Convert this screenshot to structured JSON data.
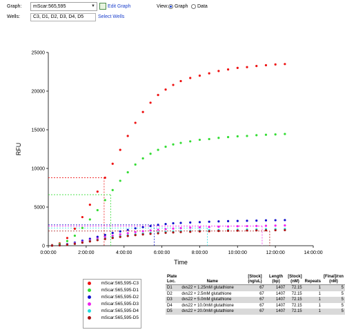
{
  "controls": {
    "graph_label": "Graph:",
    "graph_value": "mScar:565,595",
    "edit_graph": "Edit Graph",
    "wells_label": "Wells:",
    "wells_value": "C3, D1, D2, D3, D4, D5",
    "select_wells": "Select Wells",
    "view_label": "View:",
    "view_graph": "Graph",
    "view_data": "Data",
    "view_selected": "Graph"
  },
  "chart_data": {
    "type": "scatter",
    "xlabel": "Time",
    "ylabel": "RFU",
    "xlim": [
      0,
      14
    ],
    "ylim": [
      0,
      25000
    ],
    "x_ticks": [
      "0:00:00",
      "2:00:00",
      "4:00:00",
      "6:00:00",
      "8:00:00",
      "10:00:00",
      "12:00:00",
      "14:00:00"
    ],
    "y_ticks": [
      "0",
      "5000",
      "10000",
      "15000",
      "20000",
      "25000"
    ],
    "series": [
      {
        "name": "mScar:565,595-C3",
        "color": "#ee1111",
        "points": [
          [
            0.2,
            80
          ],
          [
            0.6,
            300
          ],
          [
            1.0,
            1000
          ],
          [
            1.4,
            2200
          ],
          [
            1.8,
            3700
          ],
          [
            2.2,
            5300
          ],
          [
            2.6,
            7000
          ],
          [
            3.0,
            8800
          ],
          [
            3.4,
            10600
          ],
          [
            3.8,
            12400
          ],
          [
            4.2,
            14200
          ],
          [
            4.6,
            15900
          ],
          [
            5.0,
            17300
          ],
          [
            5.4,
            18500
          ],
          [
            5.8,
            19500
          ],
          [
            6.2,
            20200
          ],
          [
            6.6,
            20800
          ],
          [
            7.0,
            21300
          ],
          [
            7.5,
            21700
          ],
          [
            8.0,
            22000
          ],
          [
            8.5,
            22300
          ],
          [
            9.0,
            22600
          ],
          [
            9.5,
            22800
          ],
          [
            10.0,
            23000
          ],
          [
            10.5,
            23100
          ],
          [
            11.0,
            23250
          ],
          [
            11.5,
            23350
          ],
          [
            12.0,
            23450
          ],
          [
            12.5,
            23500
          ]
        ]
      },
      {
        "name": "mScar:565,595-D1",
        "color": "#33dd33",
        "points": [
          [
            0.2,
            50
          ],
          [
            0.6,
            200
          ],
          [
            1.0,
            600
          ],
          [
            1.4,
            1300
          ],
          [
            1.8,
            2300
          ],
          [
            2.2,
            3400
          ],
          [
            2.6,
            4600
          ],
          [
            3.0,
            5900
          ],
          [
            3.4,
            7200
          ],
          [
            3.8,
            8400
          ],
          [
            4.2,
            9500
          ],
          [
            4.6,
            10500
          ],
          [
            5.0,
            11300
          ],
          [
            5.4,
            11900
          ],
          [
            5.8,
            12400
          ],
          [
            6.2,
            12800
          ],
          [
            6.6,
            13100
          ],
          [
            7.0,
            13300
          ],
          [
            7.5,
            13500
          ],
          [
            8.0,
            13700
          ],
          [
            8.5,
            13800
          ],
          [
            9.0,
            13950
          ],
          [
            9.5,
            14050
          ],
          [
            10.0,
            14150
          ],
          [
            10.5,
            14200
          ],
          [
            11.0,
            14300
          ],
          [
            11.5,
            14350
          ],
          [
            12.0,
            14400
          ],
          [
            12.5,
            14450
          ]
        ]
      },
      {
        "name": "mScar:565,595-D2",
        "color": "#1111cc",
        "points": [
          [
            0.2,
            20
          ],
          [
            0.6,
            80
          ],
          [
            1.0,
            200
          ],
          [
            1.4,
            400
          ],
          [
            1.8,
            650
          ],
          [
            2.2,
            900
          ],
          [
            2.6,
            1150
          ],
          [
            3.0,
            1400
          ],
          [
            3.4,
            1650
          ],
          [
            3.8,
            1850
          ],
          [
            4.2,
            2050
          ],
          [
            4.6,
            2250
          ],
          [
            5.0,
            2400
          ],
          [
            5.4,
            2550
          ],
          [
            5.8,
            2700
          ],
          [
            6.2,
            2800
          ],
          [
            6.6,
            2900
          ],
          [
            7.0,
            2950
          ],
          [
            7.5,
            3000
          ],
          [
            8.0,
            3050
          ],
          [
            8.5,
            3100
          ],
          [
            9.0,
            3150
          ],
          [
            9.5,
            3180
          ],
          [
            10.0,
            3200
          ],
          [
            10.5,
            3230
          ],
          [
            11.0,
            3250
          ],
          [
            11.5,
            3280
          ],
          [
            12.0,
            3300
          ],
          [
            12.5,
            3320
          ]
        ]
      },
      {
        "name": "mScar:565,595-D3",
        "color": "#ee22ee",
        "points": [
          [
            0.2,
            15
          ],
          [
            0.6,
            60
          ],
          [
            1.0,
            150
          ],
          [
            1.4,
            320
          ],
          [
            1.8,
            520
          ],
          [
            2.2,
            720
          ],
          [
            2.6,
            920
          ],
          [
            3.0,
            1120
          ],
          [
            3.4,
            1300
          ],
          [
            3.8,
            1470
          ],
          [
            4.2,
            1620
          ],
          [
            4.6,
            1760
          ],
          [
            5.0,
            1880
          ],
          [
            5.4,
            1980
          ],
          [
            5.8,
            2070
          ],
          [
            6.2,
            2150
          ],
          [
            6.6,
            2220
          ],
          [
            7.0,
            2280
          ],
          [
            7.5,
            2330
          ],
          [
            8.0,
            2380
          ],
          [
            8.5,
            2420
          ],
          [
            9.0,
            2460
          ],
          [
            9.5,
            2490
          ],
          [
            10.0,
            2520
          ],
          [
            10.5,
            2540
          ],
          [
            11.0,
            2560
          ],
          [
            11.5,
            2580
          ],
          [
            12.0,
            2600
          ],
          [
            12.5,
            2620
          ]
        ]
      },
      {
        "name": "mScar:565,595-D4",
        "color": "#22dddd",
        "points": [
          [
            0.2,
            10
          ],
          [
            0.6,
            50
          ],
          [
            1.0,
            130
          ],
          [
            1.4,
            260
          ],
          [
            1.8,
            430
          ],
          [
            2.2,
            600
          ],
          [
            2.6,
            770
          ],
          [
            3.0,
            930
          ],
          [
            3.4,
            1080
          ],
          [
            3.8,
            1220
          ],
          [
            4.2,
            1350
          ],
          [
            4.6,
            1460
          ],
          [
            5.0,
            1560
          ],
          [
            5.4,
            1650
          ],
          [
            5.8,
            1720
          ],
          [
            6.2,
            1790
          ],
          [
            6.6,
            1840
          ],
          [
            7.0,
            1890
          ],
          [
            7.5,
            1930
          ],
          [
            8.0,
            1970
          ],
          [
            8.5,
            2000
          ],
          [
            9.0,
            2030
          ],
          [
            9.5,
            2060
          ],
          [
            10.0,
            2080
          ],
          [
            10.5,
            2100
          ],
          [
            11.0,
            2120
          ],
          [
            11.5,
            2140
          ],
          [
            12.0,
            2150
          ],
          [
            12.5,
            2170
          ]
        ]
      },
      {
        "name": "mScar:565,595-D5",
        "color": "#aa1111",
        "points": [
          [
            0.2,
            10
          ],
          [
            0.6,
            45
          ],
          [
            1.0,
            120
          ],
          [
            1.4,
            240
          ],
          [
            1.8,
            400
          ],
          [
            2.2,
            560
          ],
          [
            2.6,
            720
          ],
          [
            3.0,
            870
          ],
          [
            3.4,
            1010
          ],
          [
            3.8,
            1140
          ],
          [
            4.2,
            1260
          ],
          [
            4.6,
            1370
          ],
          [
            5.0,
            1460
          ],
          [
            5.4,
            1540
          ],
          [
            5.8,
            1610
          ],
          [
            6.2,
            1670
          ],
          [
            6.6,
            1720
          ],
          [
            7.0,
            1770
          ],
          [
            7.5,
            1810
          ],
          [
            8.0,
            1850
          ],
          [
            8.5,
            1880
          ],
          [
            9.0,
            1910
          ],
          [
            9.5,
            1930
          ],
          [
            10.0,
            1950
          ],
          [
            10.5,
            1970
          ],
          [
            11.0,
            1990
          ],
          [
            11.5,
            2000
          ],
          [
            12.0,
            2010
          ],
          [
            12.5,
            2020
          ]
        ]
      }
    ],
    "reference_lines": [
      {
        "color": "#ee1111",
        "x": 2.95,
        "y": 8800
      },
      {
        "color": "#33dd33",
        "x": 3.3,
        "y": 6600
      },
      {
        "color": "#1111cc",
        "x": 5.6,
        "y": 2700
      },
      {
        "color": "#ee22ee",
        "x": 11.3,
        "y": 2550
      },
      {
        "color": "#22dddd",
        "x": 8.4,
        "y": 2300
      },
      {
        "color": "#aa1111",
        "x": 11.7,
        "y": 1900
      }
    ]
  },
  "table": {
    "headers": [
      "Plate Loc.",
      "Name",
      "[Stock] (ng/uL)",
      "Length (bp)",
      "[Stock] (nM)",
      "Repeats",
      "[Final]/rxn (nM)"
    ],
    "rows": [
      [
        "D1",
        "dvs22 + 1.25mM glutathione",
        "67",
        "1407",
        "72.15",
        "1",
        "5"
      ],
      [
        "D2",
        "dvs22 + 2.5mM glutathione",
        "67",
        "1407",
        "72.15",
        "1",
        "5"
      ],
      [
        "D3",
        "dvs22 + 5.0mM glutathione",
        "67",
        "1407",
        "72.15",
        "1",
        "5"
      ],
      [
        "D4",
        "dvs22 + 10.0mM glutathione",
        "67",
        "1407",
        "72.15",
        "1",
        "5"
      ],
      [
        "D5",
        "dvs22 + 20.0mM glutathione",
        "67",
        "1407",
        "72.15",
        "1",
        "5"
      ]
    ]
  }
}
